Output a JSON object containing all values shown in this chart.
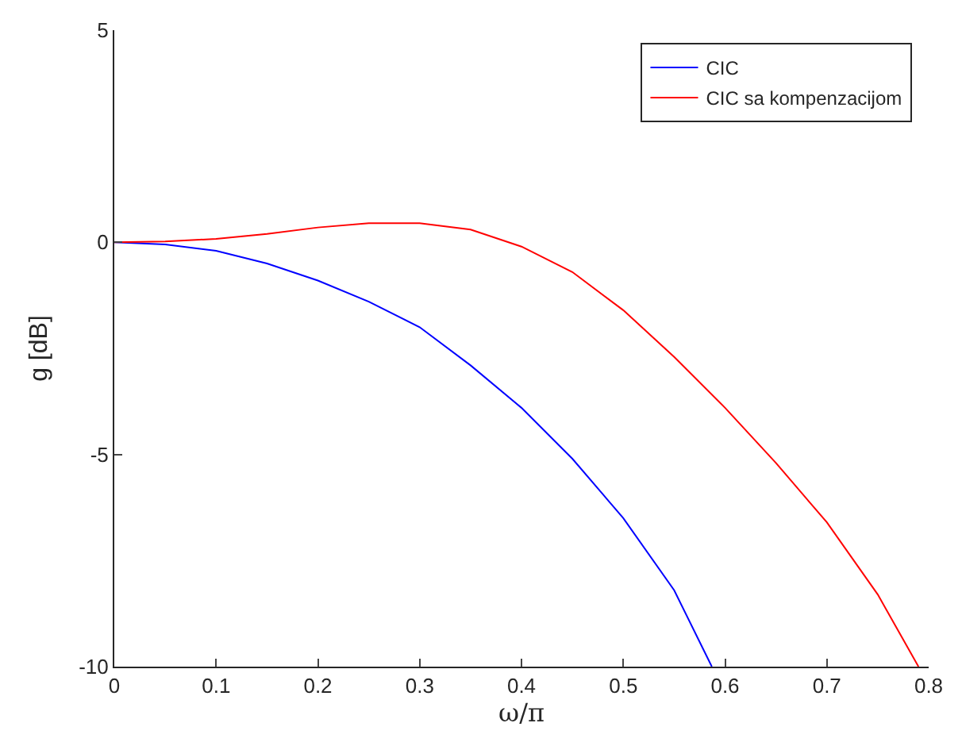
{
  "chart_data": {
    "type": "line",
    "xlabel": "ω/π",
    "ylabel": "g [dB]",
    "xlim": [
      0,
      0.8
    ],
    "ylim": [
      -10,
      5
    ],
    "xticks": [
      0,
      0.1,
      0.2,
      0.3,
      0.4,
      0.5,
      0.6,
      0.7,
      0.8
    ],
    "yticks": [
      -10,
      -5,
      0,
      5
    ],
    "legend": "top right",
    "marker": "none",
    "line_style": "solid",
    "series": [
      {
        "name": "CIC",
        "color": "#0000ff",
        "x": [
          0,
          0.05,
          0.1,
          0.15,
          0.2,
          0.25,
          0.3,
          0.35,
          0.4,
          0.45,
          0.5,
          0.55,
          0.587
        ],
        "values": [
          0,
          -0.05,
          -0.2,
          -0.5,
          -0.9,
          -1.4,
          -2.0,
          -2.9,
          -3.9,
          -5.1,
          -6.5,
          -8.2,
          -10
        ]
      },
      {
        "name": "CIC sa kompenzacijom",
        "color": "#ff0000",
        "x": [
          0,
          0.05,
          0.1,
          0.15,
          0.2,
          0.25,
          0.3,
          0.35,
          0.4,
          0.45,
          0.5,
          0.55,
          0.6,
          0.65,
          0.7,
          0.75,
          0.79
        ],
        "values": [
          0,
          0.02,
          0.08,
          0.2,
          0.35,
          0.45,
          0.45,
          0.3,
          -0.1,
          -0.7,
          -1.6,
          -2.7,
          -3.9,
          -5.2,
          -6.6,
          -8.3,
          -10
        ]
      }
    ]
  }
}
